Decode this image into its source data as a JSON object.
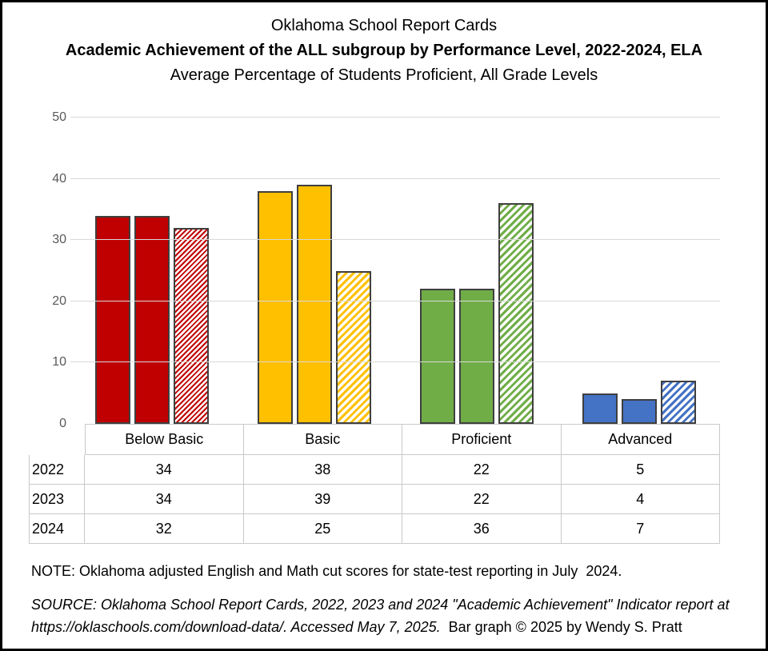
{
  "header": {
    "title": "Oklahoma School Report Cards",
    "subtitle_bold": "Academic Achievement of the ALL subgroup by Performance Level, 2022-2024, ELA",
    "subtitle2": "Average Percentage of Students Proficient, All Grade Levels"
  },
  "chart_data": {
    "type": "bar",
    "categories": [
      "Below Basic",
      "Basic",
      "Proficient",
      "Advanced"
    ],
    "series": [
      {
        "name": "2022",
        "style": "solid",
        "values": [
          34,
          38,
          22,
          5
        ]
      },
      {
        "name": "2023",
        "style": "solid",
        "values": [
          34,
          39,
          22,
          4
        ]
      },
      {
        "name": "2024",
        "style": "hatched",
        "values": [
          32,
          25,
          36,
          7
        ]
      }
    ],
    "category_colors": [
      "#C00000",
      "#FFC000",
      "#70AD47",
      "#4472C4"
    ],
    "bar_border_color": "#3F3F3F",
    "ylim": [
      0,
      50
    ],
    "yticks": [
      0,
      10,
      20,
      30,
      40,
      50
    ],
    "grid": true,
    "gridline_color": "#D9D9D9",
    "tick_label_color": "#595959",
    "hatch_direction": "upward-diagonal",
    "legend_position": "none",
    "xlabel": "",
    "ylabel": ""
  },
  "table": {
    "columns": [
      "Below Basic",
      "Basic",
      "Proficient",
      "Advanced"
    ],
    "row_headers": [
      "2022",
      "2023",
      "2024"
    ],
    "rows": [
      [
        "34",
        "38",
        "22",
        "5"
      ],
      [
        "34",
        "39",
        "22",
        "4"
      ],
      [
        "32",
        "25",
        "36",
        "7"
      ]
    ]
  },
  "note": "NOTE: Oklahoma adjusted English and Math cut scores for state-test reporting in July  2024.",
  "source": {
    "italic": "SOURCE: Oklahoma School Report Cards, 2022, 2023 and 2024 \"Academic Achievement\" Indicator report at https://oklaschools.com/download-data/. Accessed May 7, 2025.",
    "regular": "  Bar graph © 2025 by Wendy S. Pratt"
  }
}
